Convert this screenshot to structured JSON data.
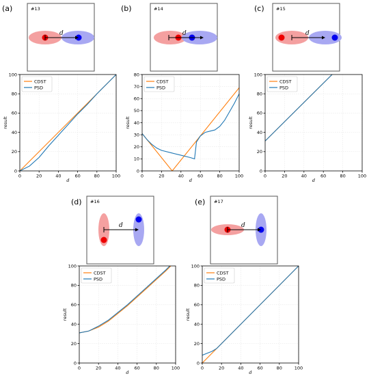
{
  "panels": [
    {
      "label": "(a)",
      "scenario": "#13"
    },
    {
      "label": "(b)",
      "scenario": "#14"
    },
    {
      "label": "(c)",
      "scenario": "#15"
    },
    {
      "label": "(d)",
      "scenario": "#16"
    },
    {
      "label": "(e)",
      "scenario": "#17"
    }
  ],
  "distance_symbol": "d",
  "colors": {
    "CDST": "#ff7f0e",
    "PSD": "#1f77b4",
    "red_region": "#f4a0a0",
    "blue_region": "#a8a8f2",
    "red_dot": "#ee0000",
    "blue_dot": "#0000ee"
  },
  "chart_data": [
    {
      "type": "line",
      "title": "",
      "xlabel": "d",
      "ylabel": "result",
      "xlim": [
        0,
        100
      ],
      "ylim": [
        0,
        100
      ],
      "xticks": [
        0,
        20,
        40,
        60,
        80,
        100
      ],
      "yticks": [
        0,
        20,
        40,
        60,
        80,
        100
      ],
      "grid": true,
      "legend": "top-left",
      "series": [
        {
          "name": "CDST",
          "x": [
            0,
            100
          ],
          "y": [
            0,
            100
          ]
        },
        {
          "name": "PSD",
          "x": [
            0,
            10,
            20,
            30,
            40,
            50,
            60,
            70,
            80,
            90,
            100
          ],
          "y": [
            0,
            5,
            14,
            26,
            37,
            48,
            59,
            69,
            80,
            90,
            100
          ]
        }
      ]
    },
    {
      "type": "line",
      "title": "",
      "xlabel": "d",
      "ylabel": "result",
      "xlim": [
        0,
        100
      ],
      "ylim": [
        0,
        80
      ],
      "xticks": [
        0,
        20,
        40,
        60,
        80,
        100
      ],
      "yticks": [
        0,
        10,
        20,
        30,
        40,
        50,
        60,
        70,
        80
      ],
      "grid": true,
      "legend": "top-left",
      "series": [
        {
          "name": "CDST",
          "x": [
            0,
            31,
            100
          ],
          "y": [
            31,
            0,
            69
          ]
        },
        {
          "name": "PSD",
          "x": [
            0,
            5,
            10,
            15,
            20,
            30,
            40,
            50,
            54,
            56,
            60,
            65,
            70,
            75,
            80,
            85,
            90,
            95,
            100
          ],
          "y": [
            31,
            26,
            22,
            19,
            17,
            15,
            13,
            11,
            10,
            24,
            29,
            32,
            33,
            34,
            37,
            42,
            49,
            56,
            64
          ]
        }
      ]
    },
    {
      "type": "line",
      "title": "",
      "xlabel": "d",
      "ylabel": "result",
      "xlim": [
        0,
        100
      ],
      "ylim": [
        0,
        100
      ],
      "xticks": [
        0,
        20,
        40,
        60,
        80,
        100
      ],
      "yticks": [
        0,
        20,
        40,
        60,
        80,
        100
      ],
      "grid": true,
      "legend": "top-left",
      "series": [
        {
          "name": "CDST",
          "x": [
            0,
            69
          ],
          "y": [
            31,
            100
          ]
        },
        {
          "name": "PSD",
          "x": [
            0,
            69
          ],
          "y": [
            31,
            100
          ]
        }
      ]
    },
    {
      "type": "line",
      "title": "",
      "xlabel": "d",
      "ylabel": "result",
      "xlim": [
        0,
        100
      ],
      "ylim": [
        0,
        100
      ],
      "xticks": [
        0,
        20,
        40,
        60,
        80,
        100
      ],
      "yticks": [
        0,
        20,
        40,
        60,
        80,
        100
      ],
      "grid": true,
      "legend": "top-left",
      "series": [
        {
          "name": "CDST",
          "x": [
            0,
            10,
            20,
            30,
            40,
            50,
            60,
            70,
            80,
            90,
            95
          ],
          "y": [
            31,
            33,
            37,
            43,
            51,
            59,
            68,
            77,
            86,
            95,
            100
          ]
        },
        {
          "name": "PSD",
          "x": [
            0,
            10,
            20,
            30,
            40,
            50,
            60,
            70,
            80,
            90,
            94
          ],
          "y": [
            31,
            33,
            38,
            44,
            52,
            60,
            69,
            78,
            87,
            96,
            100
          ]
        }
      ]
    },
    {
      "type": "line",
      "title": "",
      "xlabel": "d",
      "ylabel": "result",
      "xlim": [
        0,
        100
      ],
      "ylim": [
        0,
        100
      ],
      "xticks": [
        0,
        20,
        40,
        60,
        80,
        100
      ],
      "yticks": [
        0,
        20,
        40,
        60,
        80,
        100
      ],
      "grid": true,
      "legend": "top-left",
      "series": [
        {
          "name": "CDST",
          "x": [
            0,
            100
          ],
          "y": [
            0,
            100
          ]
        },
        {
          "name": "PSD",
          "x": [
            0,
            5,
            10,
            15,
            20,
            100
          ],
          "y": [
            8,
            10,
            12,
            15,
            20,
            100
          ]
        }
      ]
    }
  ]
}
